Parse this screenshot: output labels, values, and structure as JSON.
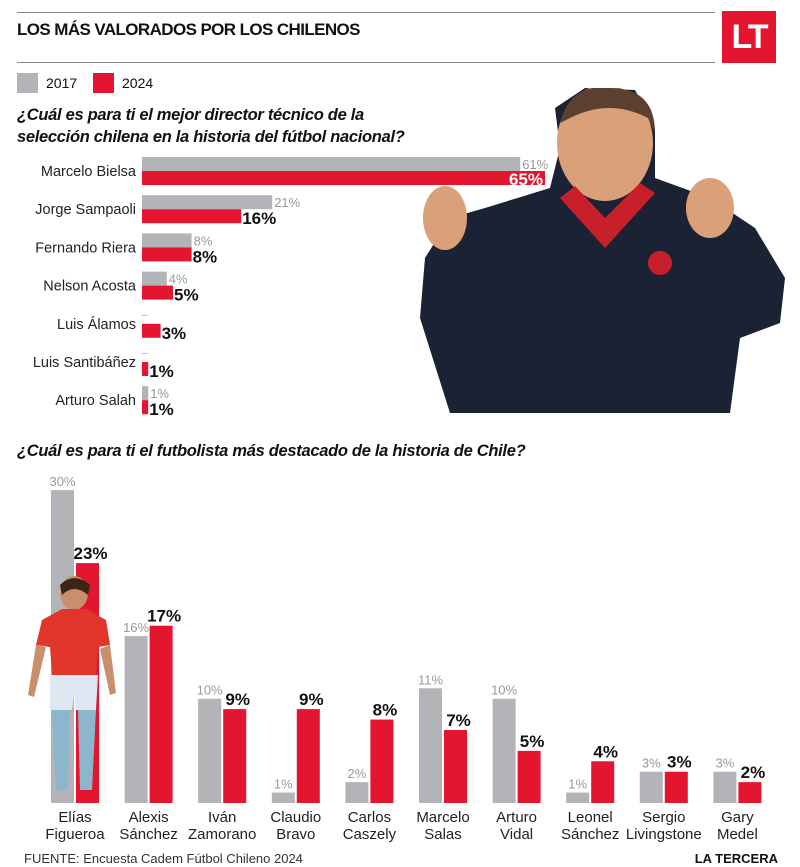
{
  "header": {
    "title": "LOS MÁS VALORADOS POR LOS CHILENOS",
    "logo": "LT"
  },
  "legend": [
    {
      "label": "2017",
      "color": "#b3b4b8"
    },
    {
      "label": "2024",
      "color": "#e3152f"
    }
  ],
  "colors": {
    "y2017": "#b3b4b8",
    "y2024": "#e3152f"
  },
  "chart_data": [
    {
      "type": "bar",
      "orientation": "horizontal",
      "title": "¿Cuál es para ti el mejor director técnico de la selección chilena en la historia del fútbol nacional?",
      "title_lines": [
        "¿Cuál es para ti el mejor director técnico de la",
        "selección chilena en la historia del fútbol nacional?"
      ],
      "categories": [
        "Marcelo Bielsa",
        "Jorge Sampaoli",
        "Fernando Riera",
        "Nelson Acosta",
        "Luis Álamos",
        "Luis Santibáñez",
        "Arturo Salah"
      ],
      "series": [
        {
          "name": "2017",
          "values": [
            61,
            21,
            8,
            4,
            null,
            null,
            1
          ],
          "labels": [
            "61%",
            "21%",
            "8%",
            "4%",
            "–",
            "–",
            "1%"
          ]
        },
        {
          "name": "2024",
          "values": [
            65,
            16,
            8,
            5,
            3,
            1,
            1
          ],
          "labels": [
            "65%",
            "16%",
            "8%",
            "5%",
            "3%",
            "1%",
            "1%"
          ]
        }
      ],
      "unit": "%"
    },
    {
      "type": "bar",
      "orientation": "vertical",
      "title": "¿Cuál es para ti el futbolista más destacado de la historia de Chile?",
      "categories": [
        [
          "Elías",
          "Figueroa"
        ],
        [
          "Alexis",
          "Sánchez"
        ],
        [
          "Iván",
          "Zamorano"
        ],
        [
          "Claudio",
          "Bravo"
        ],
        [
          "Carlos",
          "Caszely"
        ],
        [
          "Marcelo",
          "Salas"
        ],
        [
          "Arturo",
          "Vidal"
        ],
        [
          "Leonel",
          "Sánchez"
        ],
        [
          "Sergio",
          "Livingstone"
        ],
        [
          "Gary",
          "Medel"
        ]
      ],
      "series": [
        {
          "name": "2017",
          "values": [
            30,
            16,
            10,
            1,
            2,
            11,
            10,
            1,
            3,
            3
          ],
          "labels": [
            "30%",
            "16%",
            "10%",
            "1%",
            "2%",
            "11%",
            "10%",
            "1%",
            "3%",
            "3%"
          ]
        },
        {
          "name": "2024",
          "values": [
            23,
            17,
            9,
            9,
            8,
            7,
            5,
            4,
            3,
            2
          ],
          "labels": [
            "23%",
            "17%",
            "9%",
            "9%",
            "8%",
            "7%",
            "5%",
            "4%",
            "3%",
            "2%"
          ]
        }
      ],
      "unit": "%"
    }
  ],
  "footer": {
    "source": "FUENTE: Encuesta Cadem Fútbol Chileno 2024",
    "brand": "LA TERCERA"
  }
}
